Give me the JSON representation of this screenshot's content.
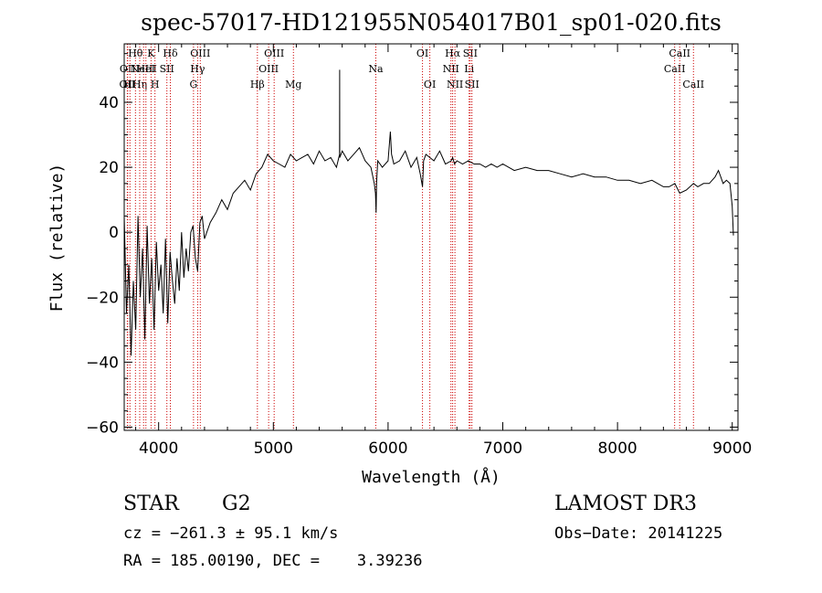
{
  "chart_data": {
    "type": "line",
    "title": "spec-57017-HD121955N054017B01_sp01-020.fits",
    "xlabel": "Wavelength (Å)",
    "ylabel": "Flux (relative)",
    "xlim": [
      3700,
      9050
    ],
    "ylim": [
      -61,
      58
    ],
    "x_ticks": [
      4000,
      5000,
      6000,
      7000,
      8000,
      9000
    ],
    "y_ticks": [
      -60,
      -40,
      -20,
      0,
      20,
      40
    ],
    "x_minor_step": 200,
    "y_minor_step": 5,
    "grid": false,
    "series": [
      {
        "name": "flux",
        "x": [
          3700,
          3720,
          3740,
          3760,
          3780,
          3800,
          3820,
          3840,
          3860,
          3880,
          3900,
          3920,
          3940,
          3960,
          3980,
          4000,
          4020,
          4040,
          4060,
          4080,
          4100,
          4120,
          4140,
          4160,
          4180,
          4200,
          4220,
          4240,
          4260,
          4280,
          4300,
          4320,
          4340,
          4360,
          4380,
          4400,
          4450,
          4500,
          4550,
          4600,
          4650,
          4700,
          4750,
          4800,
          4850,
          4900,
          4950,
          5000,
          5050,
          5100,
          5150,
          5200,
          5250,
          5300,
          5350,
          5400,
          5450,
          5500,
          5550,
          5577,
          5578,
          5579,
          5600,
          5650,
          5700,
          5750,
          5800,
          5850,
          5880,
          5890,
          5896,
          5900,
          5910,
          5950,
          6000,
          6020,
          6030,
          6050,
          6100,
          6150,
          6200,
          6250,
          6280,
          6300,
          6310,
          6330,
          6364,
          6400,
          6450,
          6500,
          6550,
          6563,
          6580,
          6600,
          6650,
          6700,
          6750,
          6800,
          6850,
          6900,
          6950,
          7000,
          7100,
          7200,
          7300,
          7400,
          7500,
          7600,
          7700,
          7800,
          7900,
          8000,
          8100,
          8200,
          8300,
          8400,
          8450,
          8500,
          8542,
          8600,
          8662,
          8700,
          8750,
          8800,
          8850,
          8880,
          8900,
          8920,
          8950,
          8980,
          9000,
          9010
        ],
        "y": [
          5,
          -25,
          -10,
          -38,
          -15,
          -30,
          5,
          -20,
          -5,
          -33,
          2,
          -22,
          -8,
          -30,
          -3,
          -18,
          -10,
          -25,
          -2,
          -28,
          -6,
          -15,
          -22,
          -8,
          -18,
          0,
          -14,
          -5,
          -12,
          0,
          2,
          -8,
          -12,
          3,
          5,
          -2,
          3,
          6,
          10,
          7,
          12,
          14,
          16,
          13,
          18,
          20,
          24,
          22,
          21,
          20,
          24,
          22,
          23,
          24,
          21,
          25,
          22,
          23,
          20,
          24,
          50,
          23,
          25,
          22,
          24,
          26,
          22,
          20,
          15,
          12,
          6,
          15,
          22,
          20,
          22,
          31,
          24,
          21,
          22,
          25,
          20,
          23,
          18,
          14,
          22,
          24,
          23,
          22,
          25,
          21,
          22,
          23,
          21,
          22,
          21,
          22,
          21,
          21,
          20,
          21,
          20,
          21,
          19,
          20,
          19,
          19,
          18,
          17,
          18,
          17,
          17,
          16,
          16,
          15,
          16,
          14,
          14,
          15,
          12,
          13,
          15,
          14,
          15,
          15,
          17,
          19,
          17,
          15,
          16,
          15,
          8,
          -1
        ]
      }
    ],
    "line_markers": [
      {
        "wl": 3727,
        "label": "OII",
        "row": 3
      },
      {
        "wl": 3730,
        "label": "OII",
        "row": 2
      },
      {
        "wl": 3750,
        "label": "HI",
        "row": 3
      },
      {
        "wl": 3798,
        "label": "Hθ",
        "row": 1
      },
      {
        "wl": 3835,
        "label": "Hη",
        "row": 3
      },
      {
        "wl": 3869,
        "label": "NeIII",
        "row": 2
      },
      {
        "wl": 3889,
        "label": "HeI",
        "row": 2
      },
      {
        "wl": 3934,
        "label": "K",
        "row": 1
      },
      {
        "wl": 3968,
        "label": "H",
        "row": 3
      },
      {
        "wl": 4072,
        "label": "SII",
        "row": 2
      },
      {
        "wl": 4102,
        "label": "Hδ",
        "row": 1
      },
      {
        "wl": 4304,
        "label": "G",
        "row": 3
      },
      {
        "wl": 4340,
        "label": "Hγ",
        "row": 2
      },
      {
        "wl": 4363,
        "label": "OIII",
        "row": 1
      },
      {
        "wl": 4861,
        "label": "Hβ",
        "row": 3
      },
      {
        "wl": 4959,
        "label": "OIII",
        "row": 2
      },
      {
        "wl": 5007,
        "label": "OIII",
        "row": 1
      },
      {
        "wl": 5175,
        "label": "Mg",
        "row": 3
      },
      {
        "wl": 5893,
        "label": "Na",
        "row": 2
      },
      {
        "wl": 6300,
        "label": "OI",
        "row": 1
      },
      {
        "wl": 6364,
        "label": "OI",
        "row": 3
      },
      {
        "wl": 6548,
        "label": "NII",
        "row": 2
      },
      {
        "wl": 6563,
        "label": "Hα",
        "row": 1
      },
      {
        "wl": 6583,
        "label": "NII",
        "row": 3
      },
      {
        "wl": 6707,
        "label": "Li",
        "row": 2
      },
      {
        "wl": 6716,
        "label": "SII",
        "row": 1
      },
      {
        "wl": 6731,
        "label": "SII",
        "row": 3
      },
      {
        "wl": 8498,
        "label": "CaII",
        "row": 2
      },
      {
        "wl": 8542,
        "label": "CaII",
        "row": 1
      },
      {
        "wl": 8662,
        "label": "CaII",
        "row": 3
      }
    ]
  },
  "info": {
    "object_class": "STAR",
    "subclass": "G2",
    "survey": "LAMOST DR3",
    "redshift_line": "cz = −261.3 ± 95.1 km/s",
    "obs_date_line": "Obs−Date: 20141225",
    "coords_line": "RA = 185.00190, DEC =    3.39236"
  },
  "colors": {
    "axes": "#000000",
    "spectrum": "#000000",
    "marker_line": "#cc0000",
    "background": "#ffffff"
  }
}
